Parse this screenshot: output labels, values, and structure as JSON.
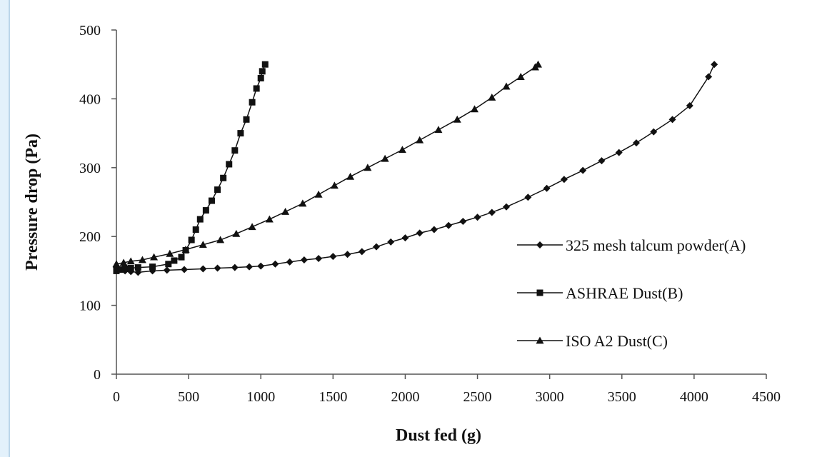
{
  "chart_data": {
    "type": "line",
    "title": "",
    "xlabel": "Dust fed (g)",
    "ylabel": "Pressure drop (Pa)",
    "xlim": [
      0,
      4500
    ],
    "ylim": [
      0,
      500
    ],
    "xticks": [
      0,
      500,
      1000,
      1500,
      2000,
      2500,
      3000,
      3500,
      4000,
      4500
    ],
    "yticks": [
      0,
      100,
      200,
      300,
      400,
      500
    ],
    "grid": false,
    "legend_position": "right",
    "series": [
      {
        "name": "325 mesh talcum powder(A)",
        "marker": "diamond",
        "color": "#111111",
        "x": [
          0,
          30,
          60,
          100,
          150,
          250,
          350,
          470,
          600,
          700,
          820,
          920,
          1000,
          1100,
          1200,
          1300,
          1400,
          1500,
          1600,
          1700,
          1800,
          1900,
          2000,
          2100,
          2200,
          2300,
          2400,
          2500,
          2600,
          2700,
          2850,
          2980,
          3100,
          3230,
          3360,
          3480,
          3600,
          3720,
          3850,
          3970,
          4100,
          4140
        ],
        "y": [
          155,
          152,
          150,
          149,
          148,
          150,
          151,
          152,
          153,
          154,
          155,
          156,
          157,
          160,
          163,
          166,
          168,
          171,
          174,
          178,
          185,
          192,
          198,
          205,
          210,
          216,
          222,
          228,
          235,
          243,
          257,
          270,
          283,
          296,
          310,
          322,
          336,
          352,
          370,
          390,
          432,
          450
        ]
      },
      {
        "name": "ASHRAE Dust(B)",
        "marker": "square",
        "color": "#111111",
        "x": [
          0,
          30,
          60,
          100,
          150,
          250,
          360,
          400,
          450,
          480,
          520,
          550,
          580,
          620,
          660,
          700,
          740,
          780,
          820,
          860,
          900,
          940,
          970,
          1000,
          1010,
          1030
        ],
        "y": [
          150,
          152,
          153,
          154,
          155,
          156,
          160,
          165,
          170,
          180,
          195,
          210,
          225,
          238,
          252,
          268,
          285,
          305,
          325,
          350,
          370,
          395,
          415,
          430,
          440,
          450
        ]
      },
      {
        "name": "ISO A2 Dust(C)",
        "marker": "triangle",
        "color": "#111111",
        "x": [
          0,
          50,
          100,
          180,
          260,
          370,
          480,
          600,
          720,
          830,
          940,
          1060,
          1170,
          1290,
          1400,
          1510,
          1620,
          1740,
          1860,
          1980,
          2100,
          2230,
          2360,
          2480,
          2600,
          2700,
          2800,
          2900,
          2920
        ],
        "y": [
          160,
          162,
          164,
          166,
          170,
          175,
          181,
          188,
          195,
          204,
          214,
          225,
          236,
          248,
          261,
          274,
          287,
          300,
          313,
          326,
          340,
          355,
          370,
          385,
          402,
          418,
          432,
          446,
          450
        ]
      }
    ]
  }
}
